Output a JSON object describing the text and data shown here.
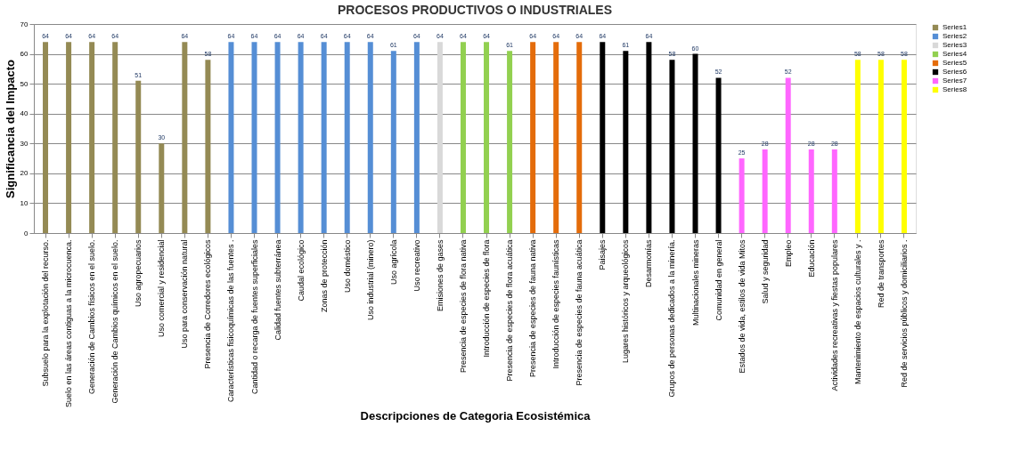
{
  "chart_data": {
    "type": "bar",
    "title": "PROCESOS PRODUCTIVOS O INDUSTRIALES",
    "xlabel": "Descripciones de Categoria  Ecosistémica",
    "ylabel": "Significancia del Impacto",
    "categories": [
      "Subsuelo para la explotación del recurso.",
      "Suelo en las áreas contiguas a la microcuenca.",
      "Generación de Cambios físicos en el suelo.",
      "Generación de Cambios químicos en el suelo.",
      "Uso agropecuarios",
      "Uso comercial y residencial",
      "Uso para conservación natural",
      "Presencia de Corredores ecológicos",
      "Características fisicoquímicas de las fuentes .",
      "Cantidad o recarga de fuentes superficiales",
      "Calidad fuentes subterránea",
      "Caudal ecológico",
      "Zonas de protección",
      "Uso doméstico",
      "Uso industrial (minero)",
      "Uso agrícola",
      "Uso recreativo",
      "Emisiones de gases",
      "Presencia de especies de flora nativa",
      "Introducción de especies de flora",
      "Presencia de especies de flora acuática",
      "Presencia de especies de fauna nativa",
      "Introducción de especies faunísticas",
      "Presencia de especies de fauna acuática",
      "Paisajes",
      "Lugares históricos y arqueológicos",
      "Desarmonías",
      "Grupos de personas dedicados a la minería.",
      "Multinacionales mineras",
      "Comunidad en general",
      "Estados de vida, estilos de vida Mitos",
      "Salud y seguridad",
      "Empleo",
      "Educación",
      "Actividades recreativas y fiestas populares",
      "Mantenimiento de espacios culturales y .",
      "Red de transportes",
      "Red de servicios públicos y domiciliarios ."
    ],
    "series": [
      {
        "name": "Series1",
        "color": "#948a54",
        "values": [
          64,
          64,
          64,
          64,
          51,
          30,
          64,
          58,
          null,
          null,
          null,
          null,
          null,
          null,
          null,
          null,
          null,
          null,
          null,
          null,
          null,
          null,
          null,
          null,
          null,
          null,
          null,
          null,
          null,
          null,
          null,
          null,
          null,
          null,
          null,
          null,
          null,
          null
        ]
      },
      {
        "name": "Series2",
        "color": "#558ed5",
        "values": [
          null,
          null,
          null,
          null,
          null,
          null,
          null,
          null,
          64,
          64,
          64,
          64,
          64,
          64,
          64,
          61,
          64,
          null,
          null,
          null,
          null,
          null,
          null,
          null,
          null,
          null,
          null,
          null,
          null,
          null,
          null,
          null,
          null,
          null,
          null,
          null,
          null,
          null
        ]
      },
      {
        "name": "Series3",
        "color": "#d9d9d9",
        "values": [
          null,
          null,
          null,
          null,
          null,
          null,
          null,
          null,
          null,
          null,
          null,
          null,
          null,
          null,
          null,
          null,
          null,
          64,
          null,
          null,
          null,
          null,
          null,
          null,
          null,
          null,
          null,
          null,
          null,
          null,
          null,
          null,
          null,
          null,
          null,
          null,
          null,
          null
        ]
      },
      {
        "name": "Series4",
        "color": "#92d050",
        "values": [
          null,
          null,
          null,
          null,
          null,
          null,
          null,
          null,
          null,
          null,
          null,
          null,
          null,
          null,
          null,
          null,
          null,
          null,
          64,
          64,
          61,
          null,
          null,
          null,
          null,
          null,
          null,
          null,
          null,
          null,
          null,
          null,
          null,
          null,
          null,
          null,
          null,
          null
        ]
      },
      {
        "name": "Series5",
        "color": "#e46c0a",
        "values": [
          null,
          null,
          null,
          null,
          null,
          null,
          null,
          null,
          null,
          null,
          null,
          null,
          null,
          null,
          null,
          null,
          null,
          null,
          null,
          null,
          null,
          64,
          64,
          64,
          null,
          null,
          null,
          null,
          null,
          null,
          null,
          null,
          null,
          null,
          null,
          null,
          null,
          null
        ]
      },
      {
        "name": "Series6",
        "color": "#000000",
        "values": [
          null,
          null,
          null,
          null,
          null,
          null,
          null,
          null,
          null,
          null,
          null,
          null,
          null,
          null,
          null,
          null,
          null,
          null,
          null,
          null,
          null,
          null,
          null,
          null,
          64,
          61,
          64,
          58,
          60,
          52,
          null,
          null,
          null,
          null,
          null,
          null,
          null,
          null
        ]
      },
      {
        "name": "Series7",
        "color": "#ff66ff",
        "values": [
          null,
          null,
          null,
          null,
          null,
          null,
          null,
          null,
          null,
          null,
          null,
          null,
          null,
          null,
          null,
          null,
          null,
          null,
          null,
          null,
          null,
          null,
          null,
          null,
          null,
          null,
          null,
          null,
          null,
          null,
          25,
          28,
          52,
          28,
          28,
          null,
          null,
          null
        ]
      },
      {
        "name": "Series8",
        "color": "#ffff00",
        "values": [
          null,
          null,
          null,
          null,
          null,
          null,
          null,
          null,
          null,
          null,
          null,
          null,
          null,
          null,
          null,
          null,
          null,
          null,
          null,
          null,
          null,
          null,
          null,
          null,
          null,
          null,
          null,
          null,
          null,
          null,
          null,
          null,
          null,
          null,
          null,
          58,
          58,
          58
        ]
      }
    ],
    "ylim": [
      0,
      70
    ],
    "yticks": [
      0,
      10,
      20,
      30,
      40,
      50,
      60,
      70
    ],
    "grid": "y",
    "legend": "right",
    "data_labels": true
  }
}
